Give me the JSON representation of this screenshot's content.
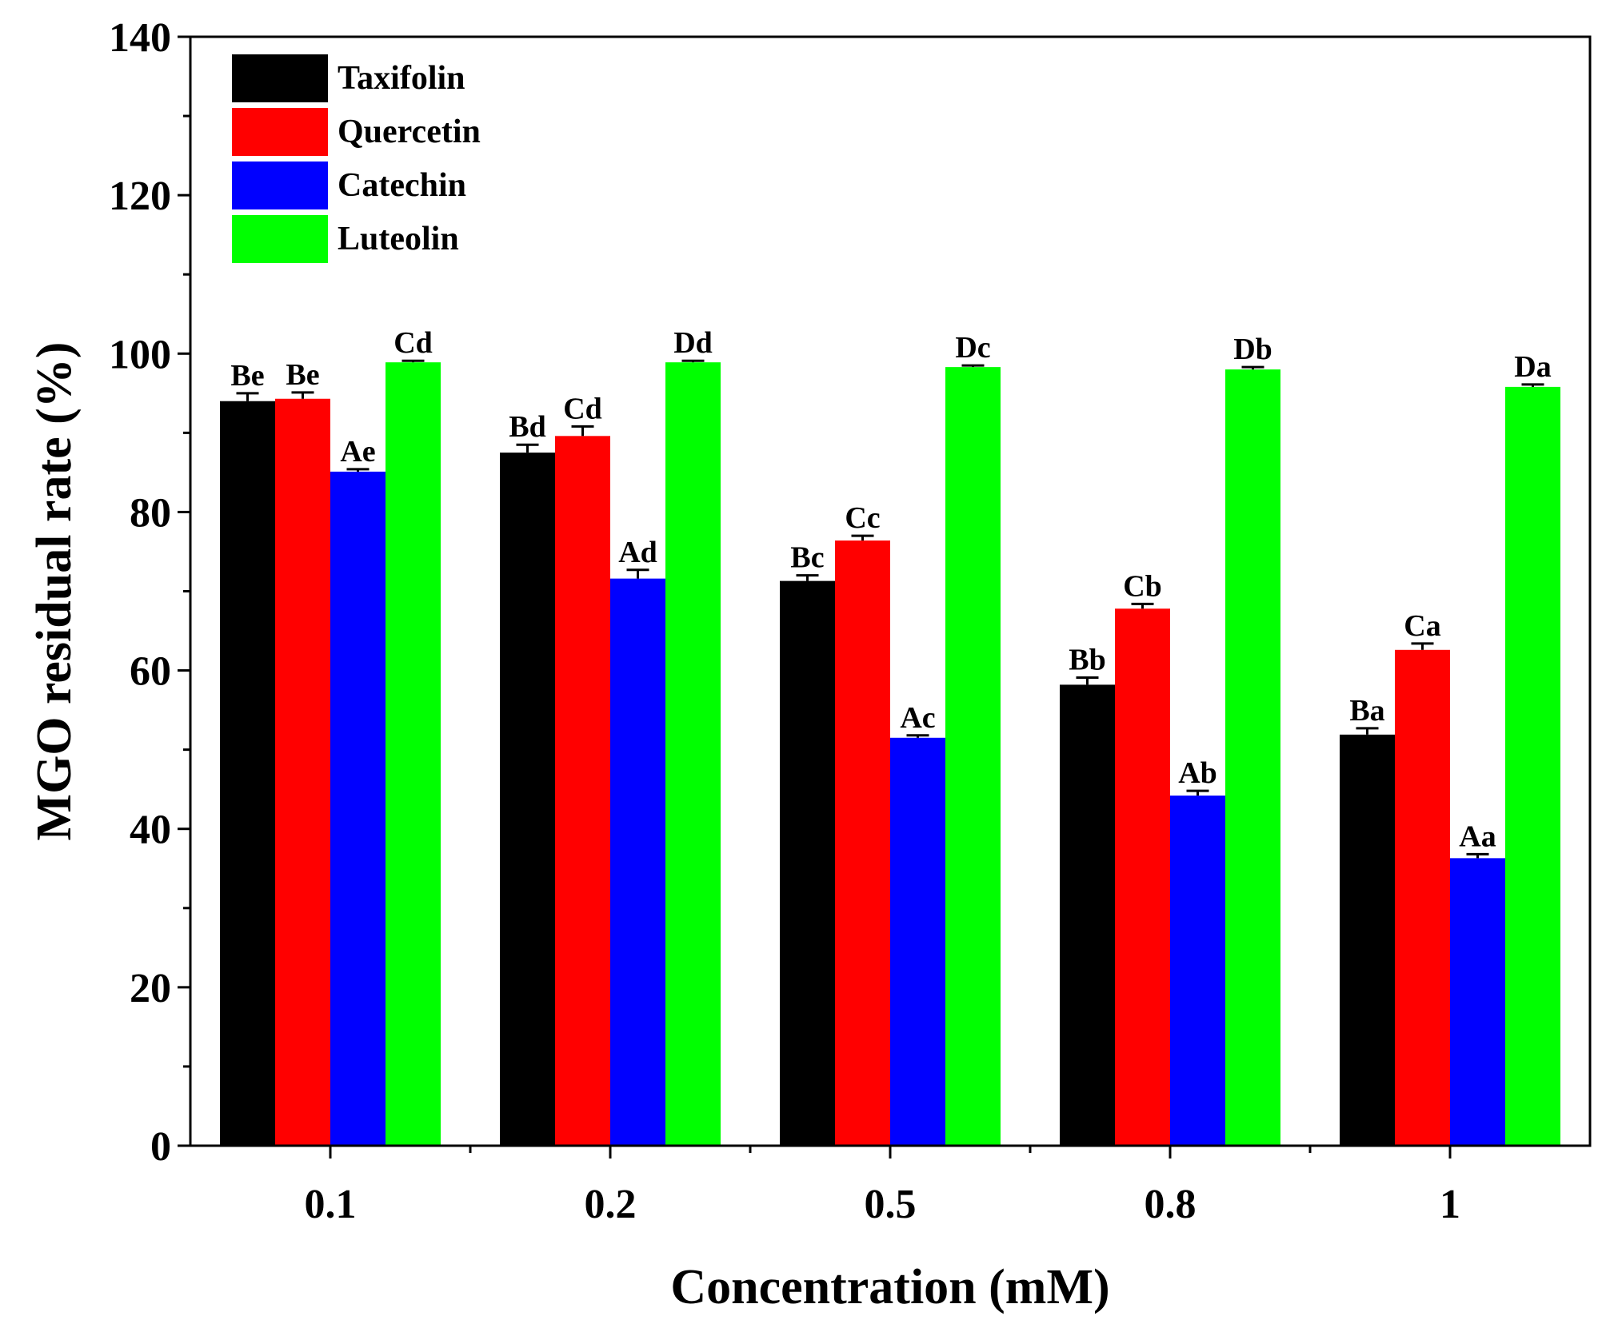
{
  "chart_data": {
    "type": "bar",
    "title": "",
    "xlabel": "Concentration (mM)",
    "ylabel": "MGO residual rate (%)",
    "ylim": [
      0,
      140
    ],
    "yticks": [
      "0",
      "20",
      "40",
      "60",
      "80",
      "100",
      "120",
      "140"
    ],
    "categories": [
      "0.1",
      "0.2",
      "0.5",
      "0.8",
      "1"
    ],
    "legend_position": "top-left",
    "grid": false,
    "series": [
      {
        "name": "Taxifolin",
        "color": "#000000",
        "values": [
          94.0,
          87.5,
          71.3,
          58.2,
          51.9
        ],
        "errors": [
          1.0,
          1.0,
          0.7,
          0.9,
          0.8
        ],
        "labels": [
          "Be",
          "Bd",
          "Bc",
          "Bb",
          "Ba"
        ]
      },
      {
        "name": "Quercetin",
        "color": "#ff0000",
        "values": [
          94.3,
          89.6,
          76.4,
          67.8,
          62.6
        ],
        "errors": [
          0.8,
          1.2,
          0.6,
          0.6,
          0.8
        ],
        "labels": [
          "Be",
          "Cd",
          "Cc",
          "Cb",
          "Ca"
        ]
      },
      {
        "name": "Catechin",
        "color": "#0000ff",
        "values": [
          85.1,
          71.6,
          51.5,
          44.2,
          36.3
        ],
        "errors": [
          0.3,
          1.1,
          0.3,
          0.6,
          0.5
        ],
        "labels": [
          "Ae",
          "Ad",
          "Ac",
          "Ab",
          "Aa"
        ]
      },
      {
        "name": "Luteolin",
        "color": "#00ff00",
        "values": [
          98.9,
          98.9,
          98.3,
          98.0,
          95.8
        ],
        "errors": [
          0.2,
          0.2,
          0.2,
          0.3,
          0.3
        ],
        "labels": [
          "Cd",
          "Dd",
          "Dc",
          "Db",
          "Da"
        ]
      }
    ]
  }
}
